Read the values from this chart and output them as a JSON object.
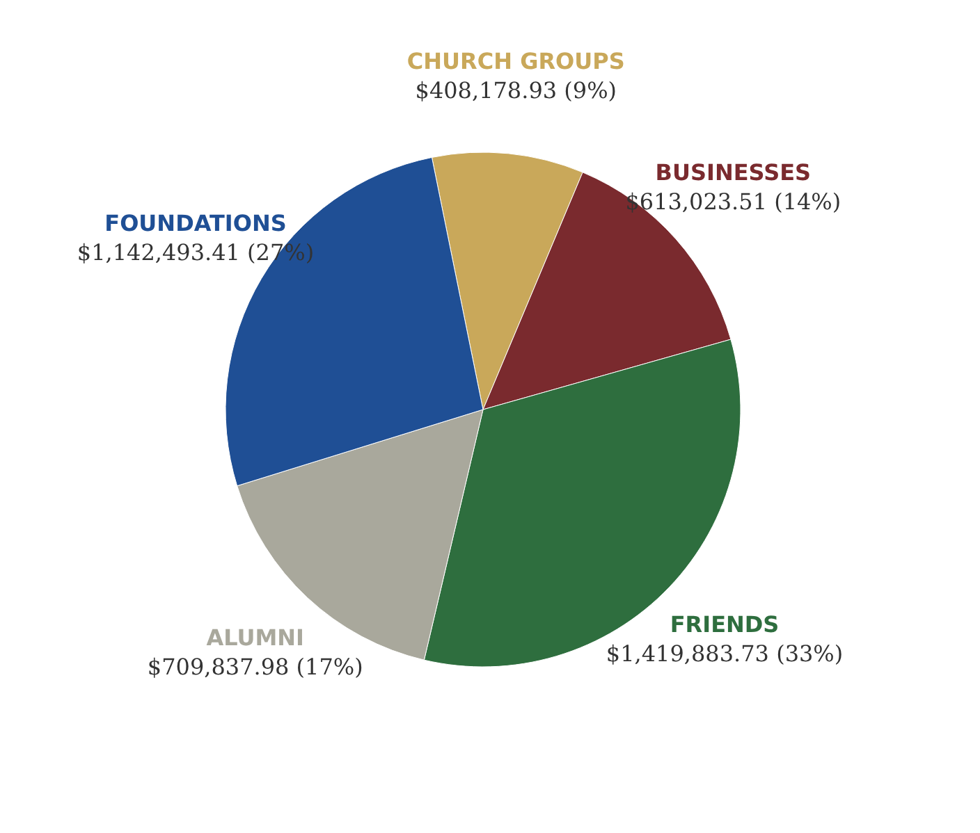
{
  "chart_data": {
    "type": "pie",
    "categories": [
      "CHURCH GROUPS",
      "BUSINESSES",
      "FRIENDS",
      "ALUMNI",
      "FOUNDATIONS"
    ],
    "values": [
      408178.93,
      613023.51,
      1419883.73,
      709837.98,
      1142493.41
    ],
    "value_labels": [
      "$408,178.93 (9%)",
      "$613,023.51 (14%)",
      "$1,419,883.73 (33%)",
      "$709,837.98 (17%)",
      "$1,142,493.41 (27%)"
    ],
    "colors": [
      "#c9a85a",
      "#7a2a2e",
      "#2e6e3e",
      "#a9a89c",
      "#1f4f95"
    ]
  }
}
